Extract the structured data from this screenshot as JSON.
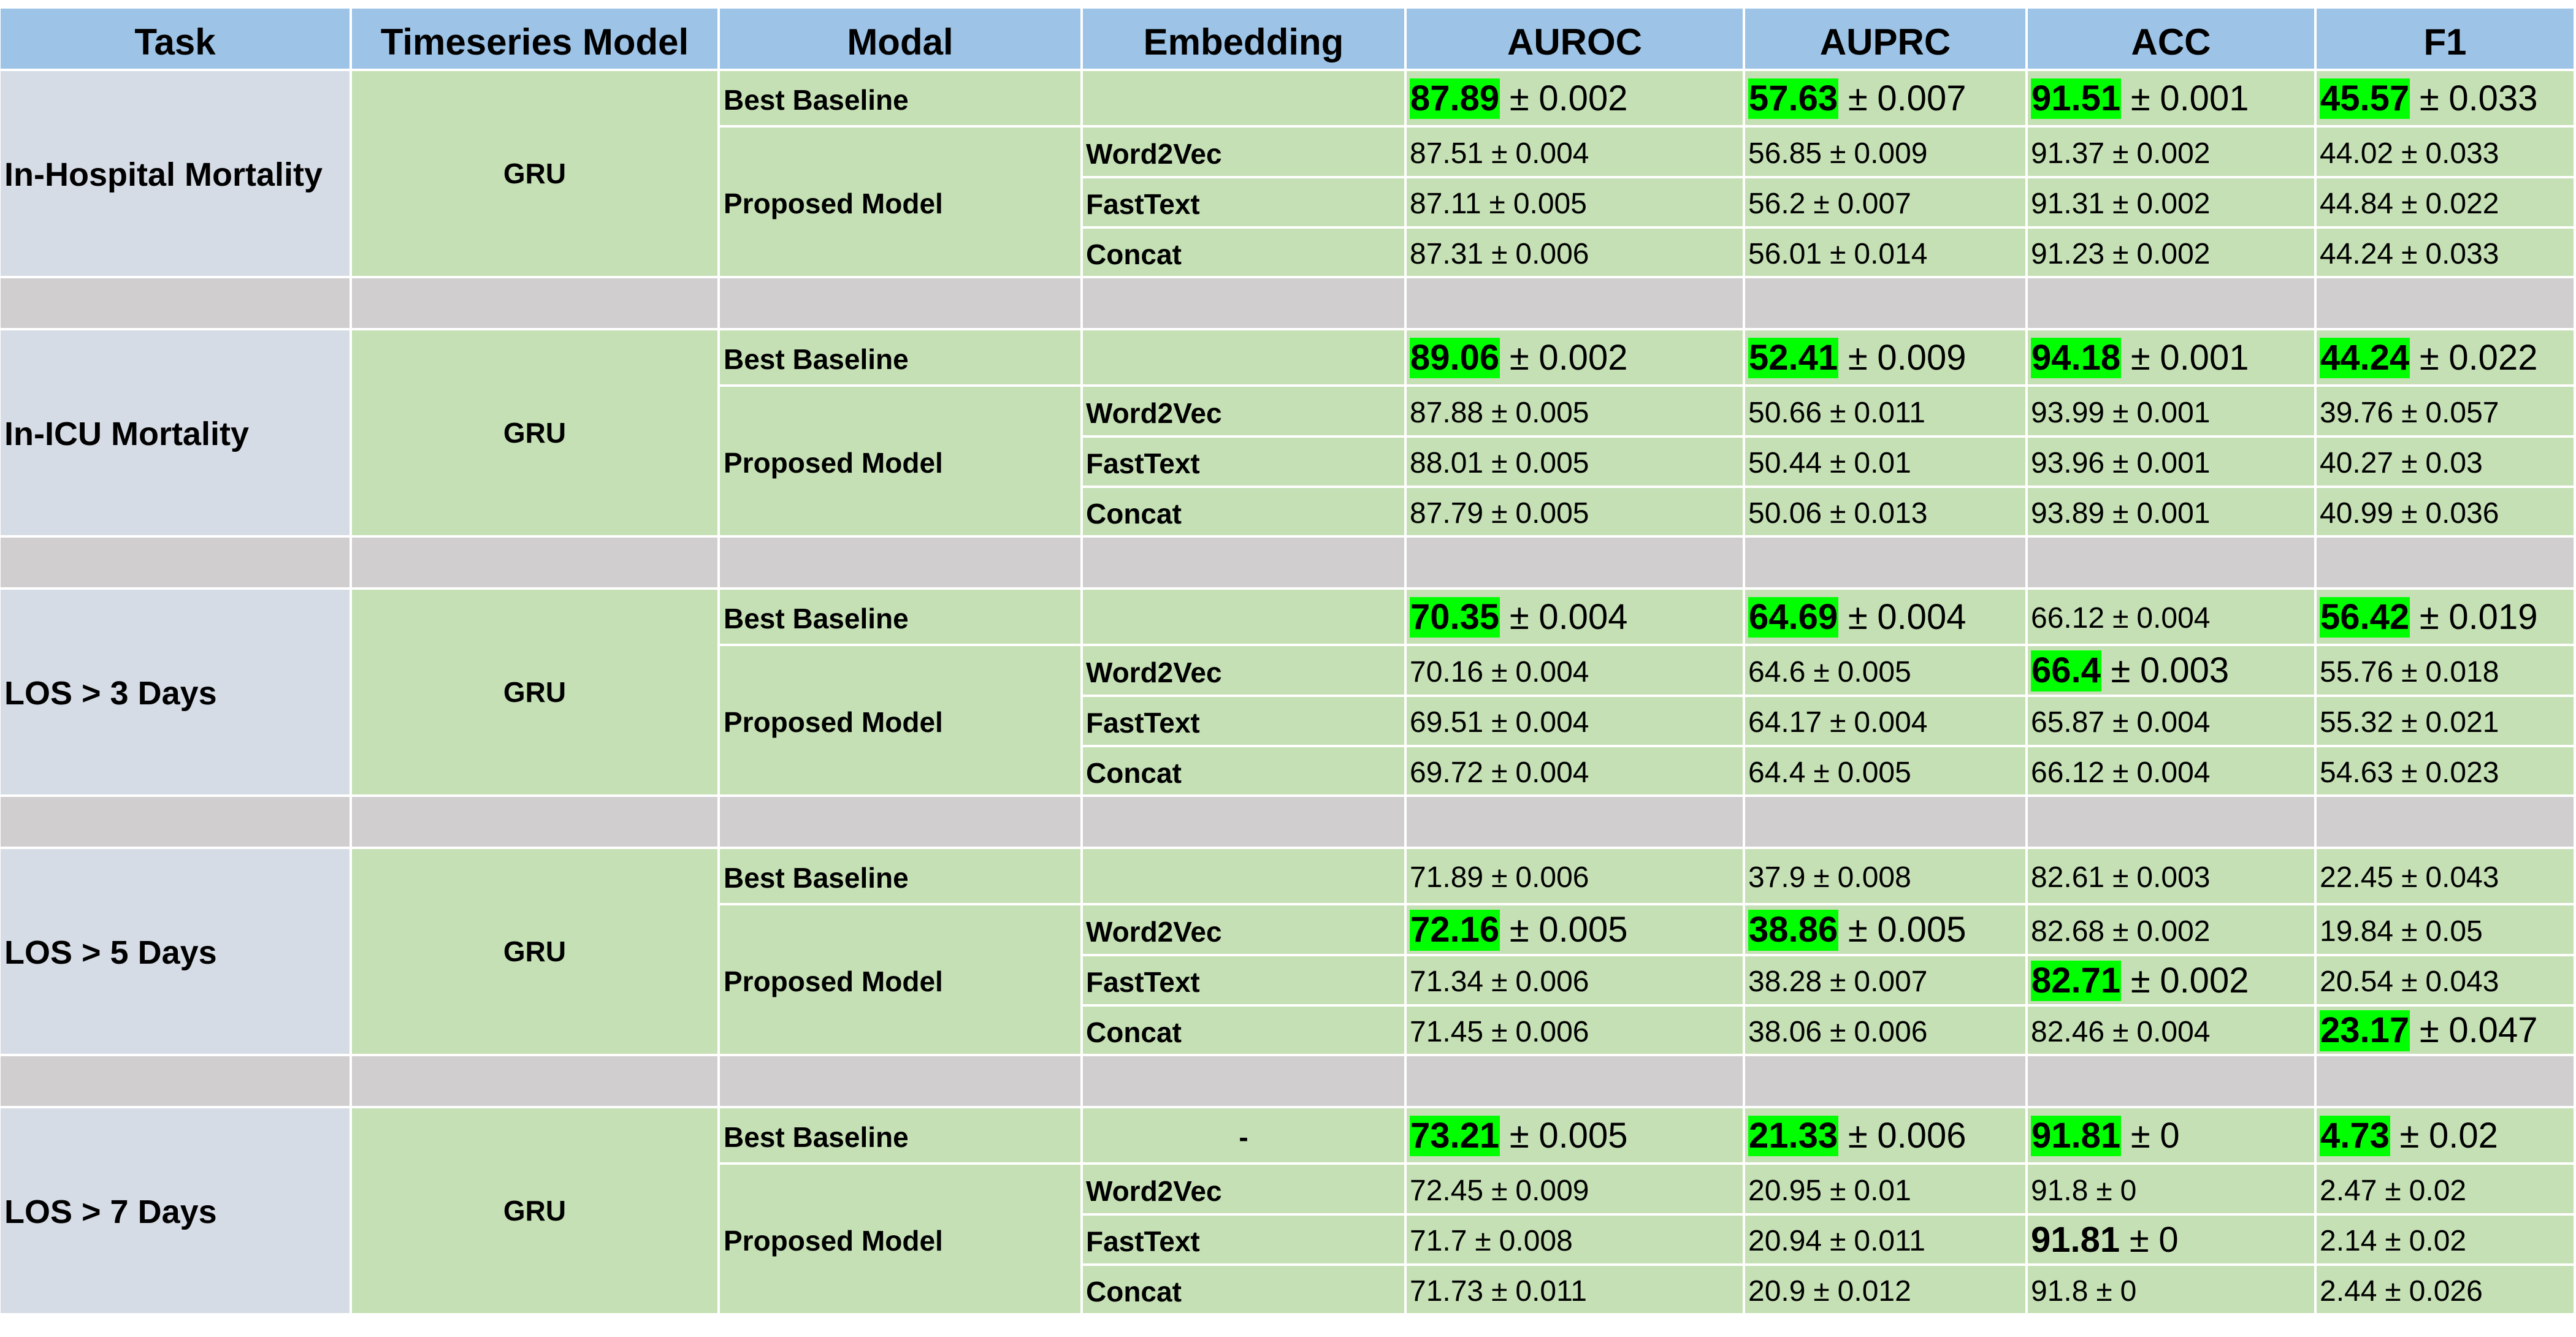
{
  "colors": {
    "header_bg": "#9dc3e6",
    "task_bg": "#d6dce5",
    "cell_bg": "#c5e0b4",
    "spacer_bg": "#d0cece",
    "highlight": "#00ff00",
    "grid_lines": "#ffffff",
    "text": "#000000"
  },
  "chart_data": {
    "type": "table",
    "columns": [
      "Task",
      "Timeseries Model",
      "Modal",
      "Embedding",
      "AUROC",
      "AUPRC",
      "ACC",
      "F1"
    ],
    "plus_minus": "±",
    "groups": [
      {
        "task": "In-Hospital Mortality",
        "timeseries_model": "GRU",
        "baseline": {
          "modal": "Best Baseline",
          "embedding": "",
          "values": [
            {
              "mean": 87.89,
              "std": 0.002,
              "highlighted": true
            },
            {
              "mean": 57.63,
              "std": 0.007,
              "highlighted": true
            },
            {
              "mean": 91.51,
              "std": 0.001,
              "highlighted": true
            },
            {
              "mean": 45.57,
              "std": 0.033,
              "highlighted": true
            }
          ]
        },
        "proposed": {
          "modal": "Proposed Model",
          "variants": [
            {
              "embedding": "Word2Vec",
              "values": [
                {
                  "mean": 87.51,
                  "std": 0.004
                },
                {
                  "mean": 56.85,
                  "std": 0.009
                },
                {
                  "mean": 91.37,
                  "std": 0.002
                },
                {
                  "mean": 44.02,
                  "std": 0.033
                }
              ]
            },
            {
              "embedding": "FastText",
              "values": [
                {
                  "mean": 87.11,
                  "std": 0.005
                },
                {
                  "mean": 56.2,
                  "std": 0.007
                },
                {
                  "mean": 91.31,
                  "std": 0.002
                },
                {
                  "mean": 44.84,
                  "std": 0.022
                }
              ]
            },
            {
              "embedding": "Concat",
              "values": [
                {
                  "mean": 87.31,
                  "std": 0.006
                },
                {
                  "mean": 56.01,
                  "std": 0.014
                },
                {
                  "mean": 91.23,
                  "std": 0.002
                },
                {
                  "mean": 44.24,
                  "std": 0.033
                }
              ]
            }
          ]
        }
      },
      {
        "task": "In-ICU Mortality",
        "timeseries_model": "GRU",
        "baseline": {
          "modal": "Best Baseline",
          "embedding": "",
          "values": [
            {
              "mean": 89.06,
              "std": 0.002,
              "highlighted": true
            },
            {
              "mean": 52.41,
              "std": 0.009,
              "highlighted": true
            },
            {
              "mean": 94.18,
              "std": 0.001,
              "highlighted": true
            },
            {
              "mean": 44.24,
              "std": 0.022,
              "highlighted": true
            }
          ]
        },
        "proposed": {
          "modal": "Proposed Model",
          "variants": [
            {
              "embedding": "Word2Vec",
              "values": [
                {
                  "mean": 87.88,
                  "std": 0.005
                },
                {
                  "mean": 50.66,
                  "std": 0.011
                },
                {
                  "mean": 93.99,
                  "std": 0.001
                },
                {
                  "mean": 39.76,
                  "std": 0.057
                }
              ]
            },
            {
              "embedding": "FastText",
              "values": [
                {
                  "mean": 88.01,
                  "std": 0.005
                },
                {
                  "mean": 50.44,
                  "std": 0.01
                },
                {
                  "mean": 93.96,
                  "std": 0.001
                },
                {
                  "mean": 40.27,
                  "std": 0.03
                }
              ]
            },
            {
              "embedding": "Concat",
              "values": [
                {
                  "mean": 87.79,
                  "std": 0.005
                },
                {
                  "mean": 50.06,
                  "std": 0.013
                },
                {
                  "mean": 93.89,
                  "std": 0.001
                },
                {
                  "mean": 40.99,
                  "std": 0.036
                }
              ]
            }
          ]
        }
      },
      {
        "task": "LOS > 3 Days",
        "timeseries_model": "GRU",
        "baseline": {
          "modal": "Best Baseline",
          "embedding": "",
          "values": [
            {
              "mean": 70.35,
              "std": 0.004,
              "highlighted": true
            },
            {
              "mean": 64.69,
              "std": 0.004,
              "highlighted": true
            },
            {
              "mean": 66.12,
              "std": 0.004
            },
            {
              "mean": 56.42,
              "std": 0.019,
              "highlighted": true
            }
          ]
        },
        "proposed": {
          "modal": "Proposed Model",
          "variants": [
            {
              "embedding": "Word2Vec",
              "values": [
                {
                  "mean": 70.16,
                  "std": 0.004
                },
                {
                  "mean": 64.6,
                  "std": 0.005
                },
                {
                  "mean": 66.4,
                  "std": 0.003,
                  "highlighted": true
                },
                {
                  "mean": 55.76,
                  "std": 0.018
                }
              ]
            },
            {
              "embedding": "FastText",
              "values": [
                {
                  "mean": 69.51,
                  "std": 0.004
                },
                {
                  "mean": 64.17,
                  "std": 0.004
                },
                {
                  "mean": 65.87,
                  "std": 0.004
                },
                {
                  "mean": 55.32,
                  "std": 0.021
                }
              ]
            },
            {
              "embedding": "Concat",
              "values": [
                {
                  "mean": 69.72,
                  "std": 0.004
                },
                {
                  "mean": 64.4,
                  "std": 0.005
                },
                {
                  "mean": 66.12,
                  "std": 0.004
                },
                {
                  "mean": 54.63,
                  "std": 0.023
                }
              ]
            }
          ]
        }
      },
      {
        "task": "LOS > 5 Days",
        "timeseries_model": "GRU",
        "baseline": {
          "modal": "Best Baseline",
          "embedding": "",
          "values": [
            {
              "mean": 71.89,
              "std": 0.006
            },
            {
              "mean": 37.9,
              "std": 0.008
            },
            {
              "mean": 82.61,
              "std": 0.003
            },
            {
              "mean": 22.45,
              "std": 0.043
            }
          ]
        },
        "proposed": {
          "modal": "Proposed Model",
          "variants": [
            {
              "embedding": "Word2Vec",
              "values": [
                {
                  "mean": 72.16,
                  "std": 0.005,
                  "highlighted": true
                },
                {
                  "mean": 38.86,
                  "std": 0.005,
                  "highlighted": true
                },
                {
                  "mean": 82.68,
                  "std": 0.002
                },
                {
                  "mean": 19.84,
                  "std": 0.05
                }
              ]
            },
            {
              "embedding": "FastText",
              "values": [
                {
                  "mean": 71.34,
                  "std": 0.006
                },
                {
                  "mean": 38.28,
                  "std": 0.007
                },
                {
                  "mean": 82.71,
                  "std": 0.002,
                  "highlighted": true
                },
                {
                  "mean": 20.54,
                  "std": 0.043
                }
              ]
            },
            {
              "embedding": "Concat",
              "values": [
                {
                  "mean": 71.45,
                  "std": 0.006
                },
                {
                  "mean": 38.06,
                  "std": 0.006
                },
                {
                  "mean": 82.46,
                  "std": 0.004
                },
                {
                  "mean": 23.17,
                  "std": 0.047,
                  "highlighted": true
                }
              ]
            }
          ]
        }
      },
      {
        "task": "LOS > 7 Days",
        "timeseries_model": "GRU",
        "baseline": {
          "modal": "Best Baseline",
          "embedding": "-",
          "values": [
            {
              "mean": 73.21,
              "std": 0.005,
              "highlighted": true
            },
            {
              "mean": 21.33,
              "std": 0.006,
              "highlighted": true
            },
            {
              "mean": 91.81,
              "std": 0,
              "highlighted": true
            },
            {
              "mean": 4.73,
              "std": 0.02,
              "highlighted": true
            }
          ]
        },
        "proposed": {
          "modal": "Proposed Model",
          "variants": [
            {
              "embedding": "Word2Vec",
              "values": [
                {
                  "mean": 72.45,
                  "std": 0.009
                },
                {
                  "mean": 20.95,
                  "std": 0.01
                },
                {
                  "mean": 91.8,
                  "std": 0
                },
                {
                  "mean": 2.47,
                  "std": 0.02
                }
              ]
            },
            {
              "embedding": "FastText",
              "values": [
                {
                  "mean": 71.7,
                  "std": 0.008
                },
                {
                  "mean": 20.94,
                  "std": 0.011
                },
                {
                  "mean": 91.81,
                  "std": 0,
                  "bold": true
                },
                {
                  "mean": 2.14,
                  "std": 0.02
                }
              ]
            },
            {
              "embedding": "Concat",
              "values": [
                {
                  "mean": 71.73,
                  "std": 0.011
                },
                {
                  "mean": 20.9,
                  "std": 0.012
                },
                {
                  "mean": 91.8,
                  "std": 0
                },
                {
                  "mean": 2.44,
                  "std": 0.026
                }
              ]
            }
          ]
        }
      }
    ]
  }
}
